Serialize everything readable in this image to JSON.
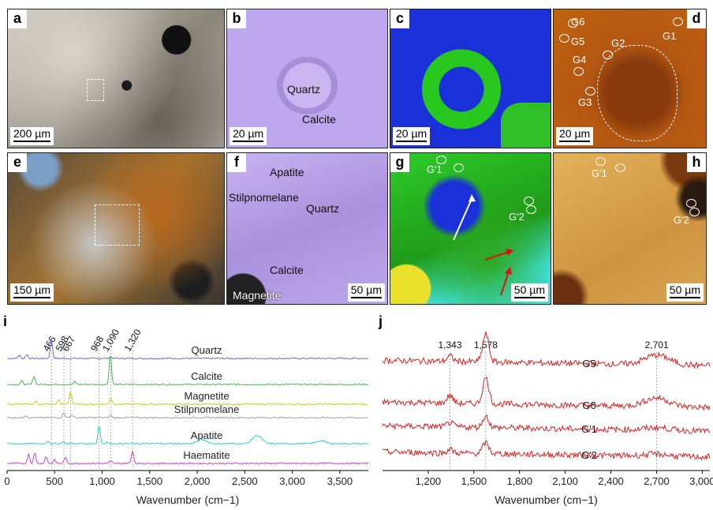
{
  "panels": {
    "a": {
      "label": "a",
      "scale": "200 µm"
    },
    "b": {
      "label": "b",
      "scale": "20 µm",
      "minerals": [
        "Quartz",
        "Calcite"
      ]
    },
    "c": {
      "label": "c",
      "scale": "20 µm"
    },
    "d": {
      "label": "d",
      "scale": "20 µm",
      "points": [
        "G6",
        "G5",
        "G4",
        "G2",
        "G3",
        "G1"
      ]
    },
    "e": {
      "label": "e",
      "scale": "150 µm"
    },
    "f": {
      "label": "f",
      "scale": "50 µm",
      "minerals": [
        "Apatite",
        "Stilpnomelane",
        "Quartz",
        "Calcite",
        "Magnetite"
      ]
    },
    "g": {
      "label": "g",
      "scale": "50 µm",
      "points": [
        "G′1",
        "G′2"
      ]
    },
    "h": {
      "label": "h",
      "scale": "50 µm",
      "points": [
        "G′1",
        "G′2"
      ]
    }
  },
  "chart_data": [
    {
      "type": "line",
      "panel_label": "i",
      "xlabel": "Wavenumber (cm−1)",
      "xlim": [
        0,
        3800
      ],
      "xticks": [
        0,
        500,
        1000,
        1500,
        2000,
        2500,
        3000,
        3500
      ],
      "xtick_labels": [
        "0",
        "500",
        "1,000",
        "1,500",
        "2,000",
        "2,500",
        "3,000",
        "3,500"
      ],
      "marked_peaks": [
        466,
        598,
        667,
        968,
        1090,
        1320
      ],
      "marked_peak_labels": [
        "466",
        "598",
        "667",
        "968",
        "1,090",
        "1,320"
      ],
      "series": [
        {
          "name": "Quartz",
          "color": "#6a6ae6",
          "peaks": [
            [
              128,
              0.25
            ],
            [
              206,
              0.35
            ],
            [
              466,
              1.6
            ],
            [
              1090,
              0.15
            ]
          ]
        },
        {
          "name": "Calcite",
          "color": "#4cb84c",
          "peaks": [
            [
              156,
              0.3
            ],
            [
              282,
              0.7
            ],
            [
              712,
              0.25
            ],
            [
              1086,
              2.6
            ]
          ]
        },
        {
          "name": "Magnetite",
          "color": "#cccc22",
          "peaks": [
            [
              300,
              0.25
            ],
            [
              540,
              0.4
            ],
            [
              667,
              1.1
            ],
            [
              1090,
              0.6
            ]
          ]
        },
        {
          "name": "Stilpnomelane",
          "color": "#a0a0a0",
          "peaks": [
            [
              200,
              0.2
            ],
            [
              598,
              0.45
            ],
            [
              680,
              0.25
            ],
            [
              1090,
              0.2
            ]
          ]
        },
        {
          "name": "Apatite",
          "color": "#33cccc",
          "peaks": [
            [
              430,
              0.25
            ],
            [
              590,
              0.2
            ],
            [
              968,
              1.6
            ],
            [
              1050,
              0.15
            ],
            [
              2050,
              0.35
            ],
            [
              2630,
              0.7
            ],
            [
              3300,
              0.25
            ]
          ]
        },
        {
          "name": "Haematite",
          "color": "#cc44cc",
          "peaks": [
            [
              226,
              0.8
            ],
            [
              292,
              0.9
            ],
            [
              410,
              0.6
            ],
            [
              500,
              0.3
            ],
            [
              612,
              0.5
            ],
            [
              1090,
              0.2
            ],
            [
              1320,
              1.1
            ]
          ]
        }
      ]
    },
    {
      "type": "line",
      "panel_label": "j",
      "xlabel": "Wavenumber (cm−1)",
      "xlim": [
        900,
        3050
      ],
      "xticks": [
        1200,
        1500,
        1800,
        2100,
        2400,
        2700,
        3000
      ],
      "xtick_labels": [
        "1,200",
        "1,500",
        "1,800",
        "2,100",
        "2,400",
        "2,700",
        "3,000"
      ],
      "marked_peaks": [
        1343,
        1578,
        2701
      ],
      "marked_peak_labels": [
        "1,343",
        "1,578",
        "2,701"
      ],
      "series": [
        {
          "name": "G5",
          "color": "#dd2222",
          "peaks": [
            [
              1343,
              0.3
            ],
            [
              1578,
              1.6
            ],
            [
              2701,
              0.55
            ]
          ]
        },
        {
          "name": "G6",
          "color": "#dd2222",
          "peaks": [
            [
              1343,
              0.45
            ],
            [
              1578,
              1.5
            ],
            [
              2701,
              0.5
            ]
          ]
        },
        {
          "name": "G′1",
          "color": "#dd2222",
          "peaks": [
            [
              1343,
              0.25
            ],
            [
              1578,
              0.65
            ],
            [
              2701,
              0.15
            ]
          ]
        },
        {
          "name": "G′2",
          "color": "#dd2222",
          "peaks": [
            [
              1343,
              0.2
            ],
            [
              1578,
              0.6
            ],
            [
              2701,
              0.12
            ]
          ]
        }
      ]
    }
  ]
}
